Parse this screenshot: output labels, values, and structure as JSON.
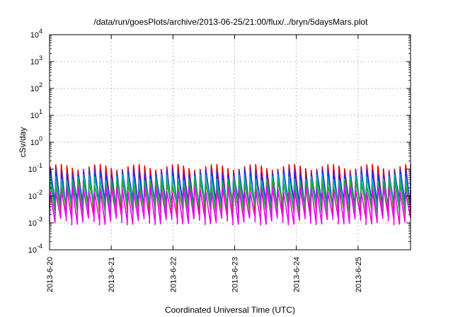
{
  "chart_data": {
    "type": "line",
    "title": "/data/run/goesPlots/archive/2013-06-25/21:00/flux/../bryn/5daysMars.plot",
    "xlabel": "Coordinated Universal Time (UTC)",
    "ylabel": "cSv/day",
    "y_scale": "log",
    "ylim": [
      0.0001,
      10000
    ],
    "y_ticks": [
      {
        "base": "10",
        "exp": "-4"
      },
      {
        "base": "10",
        "exp": "-3"
      },
      {
        "base": "10",
        "exp": "-2"
      },
      {
        "base": "10",
        "exp": "-1"
      },
      {
        "base": "10",
        "exp": "0"
      },
      {
        "base": "10",
        "exp": "1"
      },
      {
        "base": "10",
        "exp": "2"
      },
      {
        "base": "10",
        "exp": "3"
      },
      {
        "base": "10",
        "exp": "4"
      }
    ],
    "x_ticks": [
      "2013-6-20",
      "2013-6-21",
      "2013-6-22",
      "2013-6-23",
      "2013-6-24",
      "2013-6-25"
    ],
    "xlim_days": [
      0,
      5.85
    ],
    "grid": true,
    "sawtooth_period_days": 0.09,
    "series": [
      {
        "color": "#dd0000",
        "low": 0.003,
        "high": 0.12
      },
      {
        "color": "#2a2aee",
        "low": 0.005,
        "high": 0.08
      },
      {
        "color": "#00aaaa",
        "low": 0.004,
        "high": 0.05
      },
      {
        "color": "#22aa22",
        "low": 0.003,
        "high": 0.03
      },
      {
        "color": "#ee00ee",
        "low": 0.0012,
        "high": 0.018
      }
    ]
  }
}
